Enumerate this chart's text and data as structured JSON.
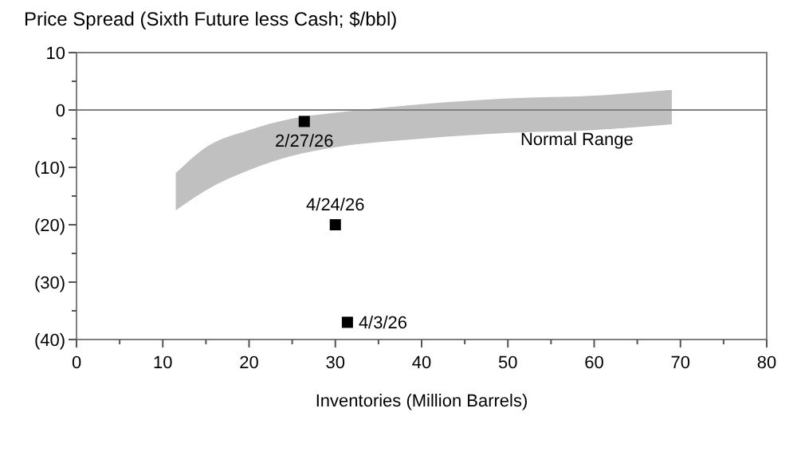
{
  "chart_data": {
    "type": "scatter",
    "title": "Price Spread (Sixth Future less Cash; $/bbl)",
    "xlabel": "Inventories (Million Barrels)",
    "xlim": [
      0,
      80
    ],
    "xticks": [
      0,
      {
        "value": 5,
        "label": null
      },
      10,
      {
        "value": 15,
        "label": null
      },
      20,
      {
        "value": 25,
        "label": null
      },
      30,
      {
        "value": 35,
        "label": null
      },
      40,
      {
        "value": 45,
        "label": null
      },
      50,
      {
        "value": 55,
        "label": null
      },
      60,
      {
        "value": 65,
        "label": null
      },
      70,
      {
        "value": 75,
        "label": null
      },
      80
    ],
    "ylim": [
      -40,
      10
    ],
    "yticks": [
      {
        "value": -40,
        "label": "(40)"
      },
      {
        "value": -35,
        "label": null
      },
      {
        "value": -30,
        "label": "(30)"
      },
      {
        "value": -25,
        "label": null
      },
      {
        "value": -20,
        "label": "(20)"
      },
      {
        "value": -15,
        "label": null
      },
      {
        "value": -10,
        "label": "(10)"
      },
      {
        "value": -5,
        "label": null
      },
      0,
      {
        "value": 5,
        "label": null
      },
      10
    ],
    "grid": false,
    "annotations": [
      {
        "text": "Normal Range",
        "x": 58,
        "y": -5
      }
    ],
    "ref_lines": [
      {
        "axis": "y",
        "value": 0,
        "color": "#808080"
      }
    ],
    "series": [
      {
        "type": "line",
        "color": "#c0c0c0",
        "marker": "none",
        "x": [
          11.5,
          15,
          20,
          25,
          30,
          40,
          50,
          60,
          69
        ],
        "values": [
          null,
          null,
          null,
          null,
          null,
          null,
          null,
          null,
          null
        ],
        "upper": [
          -11,
          -6.5,
          -3.5,
          -1.5,
          -0.5,
          1,
          2,
          2.5,
          3.5
        ],
        "lower": [
          -17.5,
          -14,
          -10.5,
          -8,
          -6.5,
          -5,
          -4,
          -3.5,
          -2.5
        ]
      },
      {
        "marker": "square",
        "color": "#000000",
        "x": [
          26.4,
          30,
          31.4
        ],
        "values": [
          -2,
          -20,
          -37
        ],
        "value_labels": [
          "2/27/26",
          "4/24/26",
          "4/3/26"
        ]
      }
    ]
  }
}
